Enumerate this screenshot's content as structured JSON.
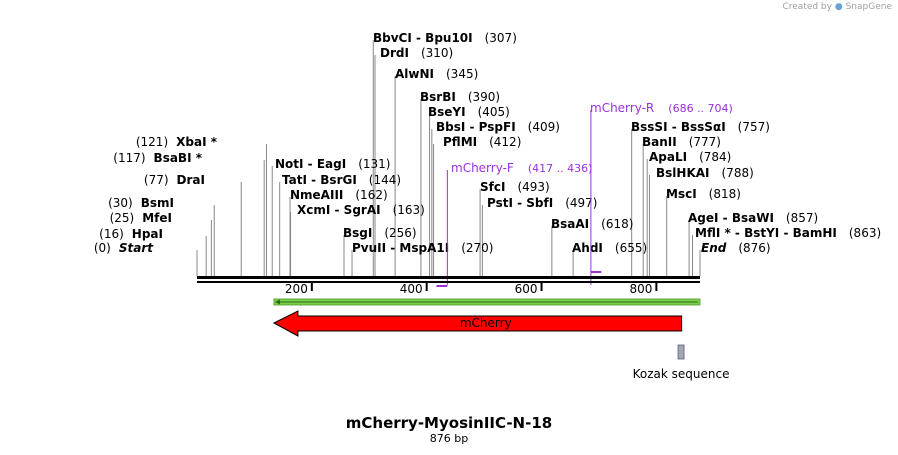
{
  "credit": {
    "text": "Created by",
    "brand": "SnapGene"
  },
  "plasmid": {
    "name": "mCherry-MyosinIIC-N-18",
    "size": "876 bp"
  },
  "sequence_length": 876,
  "ruler": {
    "ticks": [
      "200",
      "400",
      "600",
      "800"
    ],
    "values": [
      200,
      400,
      600,
      800
    ]
  },
  "sites": [
    {
      "name": "Start",
      "pos": "(0)",
      "bp": 0,
      "italic": true
    },
    {
      "name": "HpaI",
      "pos": "(16)",
      "bp": 16
    },
    {
      "name": "MfeI",
      "pos": "(25)",
      "bp": 25
    },
    {
      "name": "BsmI",
      "pos": "(30)",
      "bp": 30
    },
    {
      "name": "DraI",
      "pos": "(77)",
      "bp": 77
    },
    {
      "name": "BsaBI *",
      "pos": "(117)",
      "bp": 117
    },
    {
      "name": "XbaI *",
      "pos": "(121)",
      "bp": 121
    },
    {
      "name": "NotI  -  EagI",
      "pos": "(131)",
      "bp": 131
    },
    {
      "name": "TatI  -  BsrGI",
      "pos": "(144)",
      "bp": 144
    },
    {
      "name": "NmeAIII",
      "pos": "(162)",
      "bp": 162
    },
    {
      "name": "XcmI  -  SgrAI",
      "pos": "(163)",
      "bp": 163
    },
    {
      "name": "BsgI",
      "pos": "(256)",
      "bp": 256
    },
    {
      "name": "PvuII  -  MspA1I",
      "pos": "(270)",
      "bp": 270
    },
    {
      "name": "BbvCI  -  Bpu10I",
      "pos": "(307)",
      "bp": 307
    },
    {
      "name": "DrdI",
      "pos": "(310)",
      "bp": 310
    },
    {
      "name": "AlwNI",
      "pos": "(345)",
      "bp": 345
    },
    {
      "name": "BsrBI",
      "pos": "(390)",
      "bp": 390
    },
    {
      "name": "BseYI",
      "pos": "(405)",
      "bp": 405
    },
    {
      "name": "BbsI  -  PspFI",
      "pos": "(409)",
      "bp": 409
    },
    {
      "name": "PflMI",
      "pos": "(412)",
      "bp": 412
    },
    {
      "name": "SfcI",
      "pos": "(493)",
      "bp": 493
    },
    {
      "name": "PstI  -  SbfI",
      "pos": "(497)",
      "bp": 497
    },
    {
      "name": "BsaAI",
      "pos": "(618)",
      "bp": 618
    },
    {
      "name": "AhdI",
      "pos": "(655)",
      "bp": 655
    },
    {
      "name": "BssSI  -  BssSαI",
      "pos": "(757)",
      "bp": 757
    },
    {
      "name": "BanII",
      "pos": "(777)",
      "bp": 777
    },
    {
      "name": "ApaLI",
      "pos": "(784)",
      "bp": 784
    },
    {
      "name": "BslHKAI",
      "pos": "(788)",
      "bp": 788
    },
    {
      "name": "MscI",
      "pos": "(818)",
      "bp": 818
    },
    {
      "name": "AgeI  -  BsaWI",
      "pos": "(857)",
      "bp": 857
    },
    {
      "name": "MflI *  -  BstYI  -  BamHI",
      "pos": "(863)",
      "bp": 863
    },
    {
      "name": "End",
      "pos": "(876)",
      "bp": 876,
      "italic": true
    }
  ],
  "primers": [
    {
      "name": "mCherry-F",
      "range": "(417 .. 436)",
      "start": 417,
      "end": 436,
      "direction": "forward"
    },
    {
      "name": "mCherry-R",
      "range": "(686 .. 704)",
      "start": 686,
      "end": 704,
      "direction": "reverse"
    }
  ],
  "features": [
    {
      "name": "mCherry",
      "start": 134,
      "end": 844,
      "direction": "reverse",
      "color": "#ff0000"
    },
    {
      "name": "Kozak sequence",
      "start": 839,
      "end": 847,
      "color": "#a0a8b8"
    }
  ],
  "orf": {
    "start": 134,
    "end": 876,
    "direction": "reverse",
    "color": "#7cd14a"
  },
  "colors": {
    "primer": "#9b30d9",
    "backbone": "#000000",
    "site_line": "#888888"
  }
}
